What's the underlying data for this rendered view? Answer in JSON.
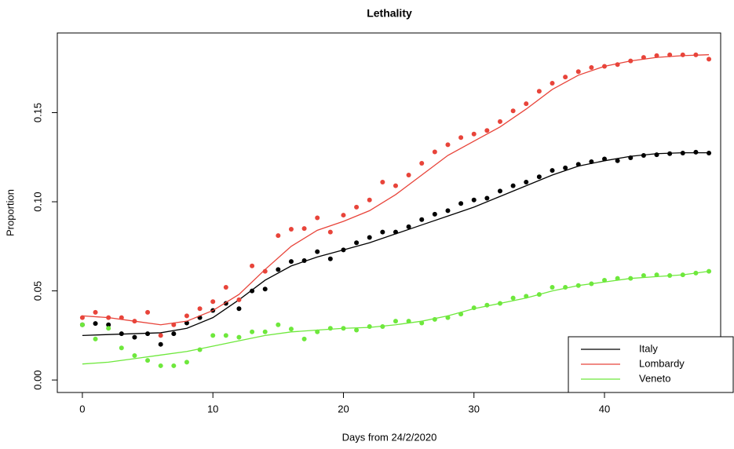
{
  "chart_data": {
    "type": "scatter",
    "title": "Lethality",
    "x_label": "Days from 24/2/2020",
    "y_label": "Proportion",
    "x": [
      0,
      1,
      2,
      3,
      4,
      5,
      6,
      7,
      8,
      9,
      10,
      11,
      12,
      13,
      14,
      15,
      16,
      17,
      18,
      19,
      20,
      21,
      22,
      23,
      24,
      25,
      26,
      27,
      28,
      29,
      30,
      31,
      32,
      33,
      34,
      35,
      36,
      37,
      38,
      39,
      40,
      41,
      42,
      43,
      44,
      45,
      46,
      47,
      48
    ],
    "fit_x": [
      0,
      2,
      4,
      6,
      8,
      10,
      12,
      14,
      16,
      18,
      20,
      22,
      24,
      26,
      28,
      30,
      32,
      34,
      36,
      38,
      40,
      42,
      44,
      46,
      48
    ],
    "series": [
      {
        "name": "Italy",
        "color": "#000000",
        "values": [
          0.031,
          0.0317,
          0.031,
          0.026,
          0.024,
          0.026,
          0.02,
          0.026,
          0.032,
          0.035,
          0.039,
          0.043,
          0.04,
          0.05,
          0.051,
          0.062,
          0.0665,
          0.067,
          0.072,
          0.068,
          0.073,
          0.077,
          0.08,
          0.083,
          0.083,
          0.086,
          0.09,
          0.093,
          0.095,
          0.099,
          0.101,
          0.102,
          0.106,
          0.109,
          0.111,
          0.114,
          0.1176,
          0.119,
          0.121,
          0.1225,
          0.124,
          0.123,
          0.1247,
          0.126,
          0.1264,
          0.127,
          0.1273,
          0.1278,
          0.1273
        ],
        "fit": [
          0.025,
          0.0255,
          0.026,
          0.0265,
          0.029,
          0.035,
          0.045,
          0.056,
          0.064,
          0.069,
          0.073,
          0.077,
          0.082,
          0.087,
          0.092,
          0.097,
          0.103,
          0.109,
          0.115,
          0.12,
          0.123,
          0.1255,
          0.127,
          0.1275,
          0.1275
        ]
      },
      {
        "name": "Lombardy",
        "color": "#e8443a",
        "values": [
          0.035,
          0.038,
          0.035,
          0.035,
          0.033,
          0.038,
          0.025,
          0.031,
          0.036,
          0.04,
          0.044,
          0.052,
          0.045,
          0.064,
          0.061,
          0.081,
          0.0846,
          0.085,
          0.091,
          0.083,
          0.0925,
          0.097,
          0.101,
          0.111,
          0.109,
          0.115,
          0.1216,
          0.128,
          0.132,
          0.136,
          0.138,
          0.14,
          0.145,
          0.151,
          0.155,
          0.162,
          0.1665,
          0.17,
          0.173,
          0.1753,
          0.176,
          0.177,
          0.179,
          0.181,
          0.182,
          0.1824,
          0.1824,
          0.1824,
          0.18
        ],
        "fit": [
          0.036,
          0.035,
          0.033,
          0.031,
          0.033,
          0.039,
          0.048,
          0.062,
          0.075,
          0.084,
          0.089,
          0.095,
          0.104,
          0.115,
          0.126,
          0.134,
          0.142,
          0.152,
          0.163,
          0.171,
          0.176,
          0.179,
          0.181,
          0.182,
          0.1825
        ]
      },
      {
        "name": "Veneto",
        "color": "#6ee83c",
        "values": [
          0.031,
          0.023,
          0.029,
          0.018,
          0.0137,
          0.011,
          0.008,
          0.008,
          0.01,
          0.017,
          0.025,
          0.025,
          0.024,
          0.027,
          0.027,
          0.031,
          0.0286,
          0.023,
          0.027,
          0.029,
          0.029,
          0.028,
          0.03,
          0.03,
          0.033,
          0.033,
          0.032,
          0.034,
          0.035,
          0.037,
          0.0405,
          0.042,
          0.043,
          0.046,
          0.047,
          0.048,
          0.052,
          0.052,
          0.053,
          0.054,
          0.056,
          0.057,
          0.057,
          0.0586,
          0.059,
          0.0586,
          0.059,
          0.06,
          0.061
        ],
        "fit": [
          0.009,
          0.01,
          0.012,
          0.014,
          0.016,
          0.019,
          0.022,
          0.025,
          0.027,
          0.028,
          0.029,
          0.0295,
          0.031,
          0.033,
          0.036,
          0.04,
          0.043,
          0.046,
          0.05,
          0.053,
          0.055,
          0.057,
          0.058,
          0.059,
          0.061
        ]
      }
    ],
    "xlim": [
      -1.92,
      48.9
    ],
    "ylim": [
      -0.007,
      0.1947
    ],
    "xticks": [
      0,
      10,
      20,
      30,
      40
    ],
    "yticks": [
      {
        "value": 0,
        "label": "0.00"
      },
      {
        "value": 0.05,
        "label": "0.05"
      },
      {
        "value": 0.1,
        "label": "0.10"
      },
      {
        "value": 0.15,
        "label": "0.15"
      }
    ],
    "legend": "bottomright"
  }
}
